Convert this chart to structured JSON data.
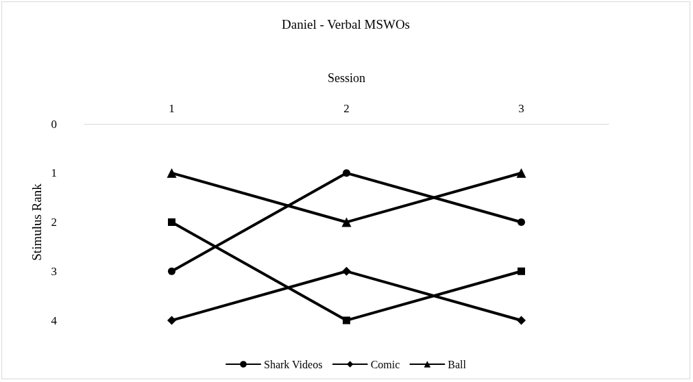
{
  "chart_data": {
    "type": "line",
    "title": "Daniel - Verbal MSWOs",
    "xlabel": "Session",
    "ylabel": "Stimulus Rank",
    "categories": [
      "1",
      "2",
      "3"
    ],
    "series": [
      {
        "name": "Shark Videos",
        "color": "#000000",
        "marker": "circle",
        "values": [
          3,
          1,
          2
        ]
      },
      {
        "name": "Comic",
        "color": "#000000",
        "marker": "diamond",
        "values": [
          4,
          3,
          4
        ]
      },
      {
        "color": "#000000",
        "marker": "square",
        "values": [
          2,
          4,
          3
        ]
      },
      {
        "name": "Ball",
        "color": "#000000",
        "marker": "triangle",
        "values": [
          1,
          2,
          1
        ]
      }
    ],
    "ylim": [
      4,
      0
    ],
    "yticks": [
      0,
      1,
      2,
      3,
      4
    ],
    "grid": false,
    "legend": "bottom",
    "line_style": "solid"
  }
}
